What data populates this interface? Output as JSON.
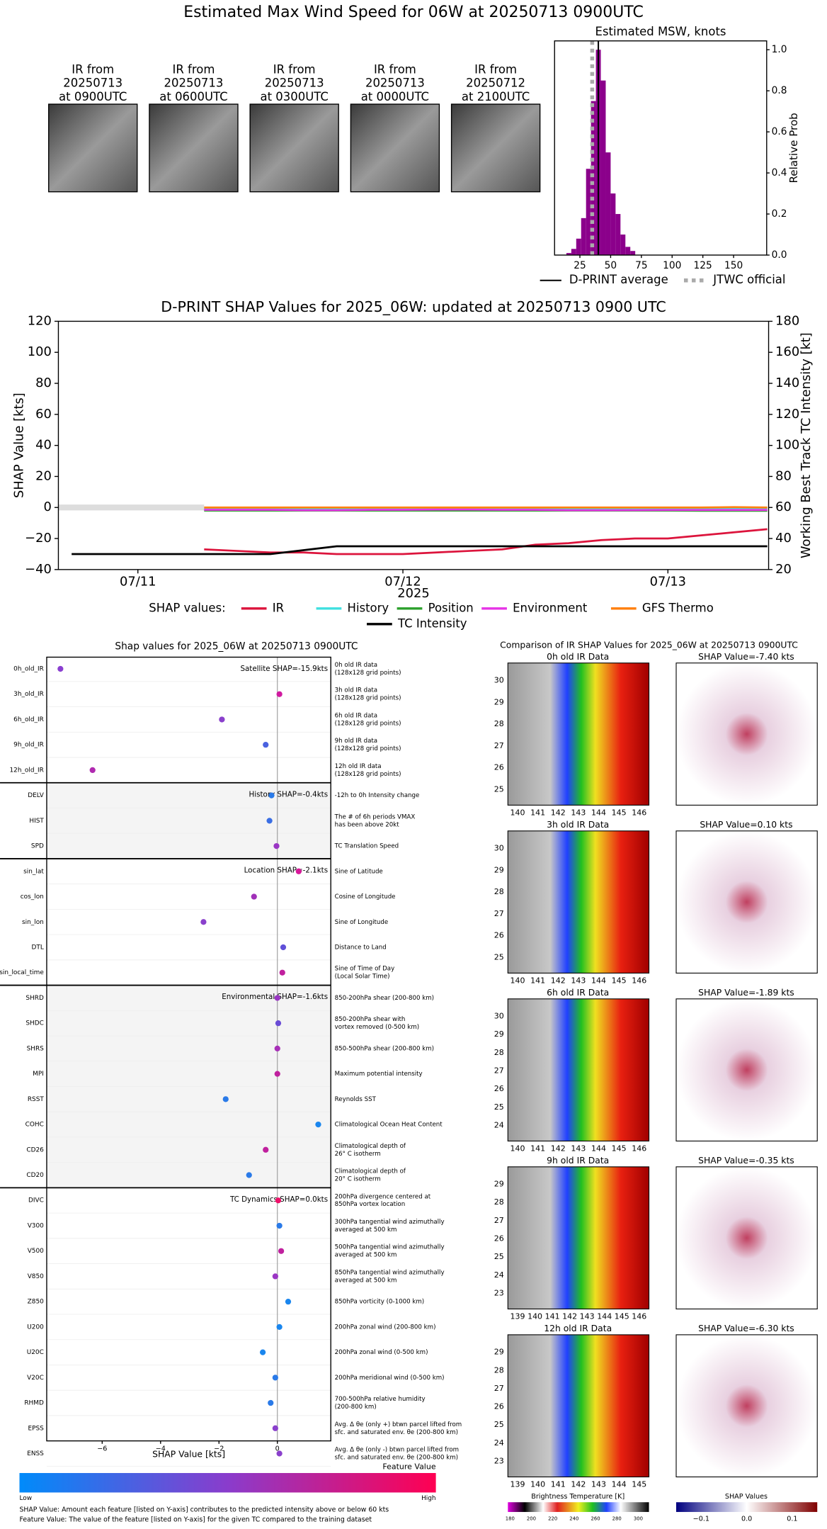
{
  "title": "Estimated Max Wind Speed for 06W at 20250713 0900UTC",
  "thumbnails": [
    {
      "label": [
        "IR from",
        "20250713",
        "at 0900UTC"
      ]
    },
    {
      "label": [
        "IR from",
        "20250713",
        "at 0600UTC"
      ]
    },
    {
      "label": [
        "IR from",
        "20250713",
        "at 0300UTC"
      ]
    },
    {
      "label": [
        "IR from",
        "20250713",
        "at 0000UTC"
      ]
    },
    {
      "label": [
        "IR from",
        "20250712",
        "at 2100UTC"
      ]
    }
  ],
  "chart_data": [
    {
      "type": "histogram",
      "title": "Estimated MSW, knots",
      "y_label": "Relative Prob",
      "color": "#8b008b",
      "bins": [
        14,
        18,
        22,
        26,
        30,
        34,
        38,
        42,
        46,
        50,
        54,
        58,
        62,
        66,
        70
      ],
      "values": [
        0.01,
        0.03,
        0.08,
        0.18,
        0.42,
        0.75,
        1.0,
        0.85,
        0.5,
        0.3,
        0.2,
        0.1,
        0.04,
        0.02
      ],
      "xlim": [
        4.4,
        176.9
      ],
      "xticks": [
        25,
        50,
        75,
        100,
        125,
        150
      ],
      "ylim": [
        0,
        1.043
      ],
      "yticks": [
        {
          "value": 0,
          "label": "0.0"
        },
        {
          "value": 0.2,
          "label": "0.2"
        },
        {
          "value": 0.4,
          "label": "0.4"
        },
        {
          "value": 0.6,
          "label": "0.6"
        },
        {
          "value": 0.8,
          "label": "0.8"
        },
        {
          "value": 1.0,
          "label": "1.0"
        }
      ],
      "reference_lines": [
        {
          "name": "D-PRINT average",
          "value": 40,
          "color": "#000000",
          "style": "solid"
        },
        {
          "name": "JTWC official",
          "value": 35,
          "color": "#aaaaaa",
          "style": "dotted"
        }
      ]
    },
    {
      "type": "line",
      "title": "D-PRINT SHAP Values for 2025_06W: updated at 20250713 0900 UTC",
      "y_label": "SHAP Value [kts]",
      "y2_label": "Working Best Track TC Intensity [kt]",
      "x_label": "2025",
      "legend_title": "SHAP values:",
      "x": [
        -0.25,
        -0.125,
        0,
        0.125,
        0.25,
        0.375,
        0.5,
        0.625,
        0.75,
        0.875,
        1,
        1.125,
        1.25,
        1.375,
        1.5,
        1.625,
        1.75,
        1.875,
        2,
        2.125,
        2.25,
        2.375
      ],
      "xlim": [
        -0.3,
        2.38
      ],
      "xticks": [
        {
          "value": 0,
          "label": "07/11"
        },
        {
          "value": 1,
          "label": "07/12"
        },
        {
          "value": 2,
          "label": "07/13"
        }
      ],
      "ylim": [
        -40,
        120
      ],
      "yticks": [
        {
          "value": -40,
          "label": "−40"
        },
        {
          "value": -20,
          "label": "−20"
        },
        0,
        20,
        40,
        60,
        80,
        100,
        120
      ],
      "y2lim": [
        20,
        180
      ],
      "y2ticks": [
        20,
        40,
        60,
        80,
        100,
        120,
        140,
        160,
        180
      ],
      "series": [
        {
          "name": "IR",
          "color": "#dc143c",
          "values": [
            null,
            null,
            null,
            null,
            -27,
            -28,
            -29,
            -29,
            -30,
            -30,
            -30,
            -29,
            -28,
            -27,
            -24,
            -23,
            -21,
            -20,
            -20,
            -18,
            -16,
            -14
          ]
        },
        {
          "name": "History",
          "color": "#40e0e0",
          "values": [
            null,
            null,
            null,
            null,
            -1,
            -1,
            -1,
            -1,
            -1,
            -1,
            -1,
            -1,
            -1,
            -1,
            -0.8,
            -0.8,
            -0.7,
            -0.6,
            -0.5,
            -0.5,
            -0.4,
            -0.4
          ]
        },
        {
          "name": "Position",
          "color": "#2ca02c",
          "values": [
            null,
            null,
            null,
            null,
            -2,
            -2,
            -2,
            -2,
            -2,
            -2,
            -2,
            -2,
            -2,
            -2,
            -2,
            -2,
            -2,
            -2,
            -2,
            -2.1,
            -2.1,
            -2.1
          ]
        },
        {
          "name": "Environment",
          "color": "#e633e6",
          "values": [
            null,
            null,
            null,
            null,
            -1.5,
            -1.5,
            -1.5,
            -1.8,
            -1.8,
            -1.5,
            -1.5,
            -1.3,
            -1.3,
            -1.5,
            -1.5,
            -1.8,
            -1.8,
            -1.7,
            -1.6,
            -1.6,
            -1.6,
            -1.6
          ]
        },
        {
          "name": "GFS Thermo",
          "color": "#ff7f0e",
          "values": [
            null,
            null,
            null,
            null,
            0,
            0,
            0,
            0,
            0,
            0,
            0,
            0,
            0,
            0,
            0,
            0,
            0,
            0,
            0,
            0,
            0.2,
            0
          ]
        },
        {
          "name": "TC Intensity",
          "color": "#000000",
          "axis": "y2",
          "values": [
            30,
            30,
            30,
            30,
            30,
            30,
            30,
            32.5,
            35,
            35,
            35,
            35,
            35,
            35,
            35,
            35,
            35,
            35,
            35,
            35,
            35,
            35
          ]
        }
      ]
    },
    {
      "type": "dot",
      "title": "Shap values for 2025_06W at 20250713 0900UTC",
      "x_label": "SHAP Value [kts]",
      "xlim": [
        -7.9,
        1.83
      ],
      "xticks": [
        {
          "value": -6,
          "label": "−6"
        },
        {
          "value": -4,
          "label": "−4"
        },
        {
          "value": -2,
          "label": "−2"
        },
        0
      ],
      "colorbar_label": "Feature Value",
      "colorbar_low": "Low",
      "colorbar_high": "High",
      "notes": [
        "SHAP Value: Amount each feature [listed on Y-axis] contributes to the predicted intensity above or below 60 kts",
        "Feature Value: The value of the feature [listed on Y-axis] for the given TC compared to the training dataset"
      ],
      "groups": [
        {
          "label": "Satellite SHAP=-15.9kts",
          "shaded": false,
          "features": [
            {
              "name": "0h_old_IR",
              "value": -7.43,
              "color": "#8a3fd0",
              "description": [
                "0h old IR data",
                "(128x128 grid points)"
              ]
            },
            {
              "name": "3h_old_IR",
              "value": 0.07,
              "color": "#d01aa0",
              "description": [
                "3h old IR data",
                "(128x128 grid points)"
              ]
            },
            {
              "name": "6h_old_IR",
              "value": -1.9,
              "color": "#8a40cc",
              "description": [
                "6h old IR data",
                "(128x128 grid points)"
              ]
            },
            {
              "name": "9h_old_IR",
              "value": -0.4,
              "color": "#4a62e0",
              "description": [
                "9h old IR data",
                "(128x128 grid points)"
              ]
            },
            {
              "name": "12h_old_IR",
              "value": -6.33,
              "color": "#b02ab0",
              "description": [
                "12h old IR data",
                "(128x128 grid points)"
              ]
            }
          ]
        },
        {
          "label": "History SHAP=-0.4kts",
          "shaded": true,
          "features": [
            {
              "name": "DELV",
              "value": -0.2,
              "color": "#2a7ae8",
              "description": [
                "-12h to 0h Intensity change"
              ]
            },
            {
              "name": "HIST",
              "value": -0.27,
              "color": "#3a6ee4",
              "description": [
                "The # of 6h periods VMAX",
                "has been above 20kt"
              ]
            },
            {
              "name": "SPD",
              "value": -0.03,
              "color": "#9a36c4",
              "description": [
                "TC Translation Speed"
              ]
            }
          ]
        },
        {
          "label": "Location SHAP=-2.1kts",
          "shaded": false,
          "features": [
            {
              "name": "sin_lat",
              "value": 0.73,
              "color": "#d8189a",
              "description": [
                "Sine of Latitude"
              ]
            },
            {
              "name": "cos_lon",
              "value": -0.8,
              "color": "#a030b8",
              "description": [
                "Cosine of Longitude"
              ]
            },
            {
              "name": "sin_lon",
              "value": -2.53,
              "color": "#8a40cc",
              "description": [
                "Sine of Longitude"
              ]
            },
            {
              "name": "DTL",
              "value": 0.2,
              "color": "#6050d8",
              "description": [
                "Distance to Land"
              ]
            },
            {
              "name": "sin_local_time",
              "value": 0.17,
              "color": "#c0209e",
              "description": [
                "Sine of Time of Day",
                "(Local Solar Time)"
              ]
            }
          ]
        },
        {
          "label": "Environmental SHAP=-1.6kts",
          "shaded": true,
          "features": [
            {
              "name": "SHRD",
              "value": 0.0,
              "color": "#9a36c4",
              "description": [
                "850-200hPa shear (200-800 km)"
              ]
            },
            {
              "name": "SHDC",
              "value": 0.03,
              "color": "#6a4cd6",
              "description": [
                "850-200hPa shear with",
                "vortex removed (0-500 km)"
              ]
            },
            {
              "name": "SHRS",
              "value": 0.0,
              "color": "#a830b8",
              "description": [
                "850-500hPa shear (200-800 km)"
              ]
            },
            {
              "name": "MPI",
              "value": 0.0,
              "color": "#c0209e",
              "description": [
                "Maximum potential intensity"
              ]
            },
            {
              "name": "RSST",
              "value": -1.77,
              "color": "#2a7ae8",
              "description": [
                "Reynolds SST"
              ]
            },
            {
              "name": "COHC",
              "value": 1.4,
              "color": "#1a86ee",
              "description": [
                "Climatological Ocean Heat Content"
              ]
            },
            {
              "name": "CD26",
              "value": -0.4,
              "color": "#c0209e",
              "description": [
                "Climatological depth of",
                "26° C isotherm"
              ]
            },
            {
              "name": "CD20",
              "value": -0.97,
              "color": "#2a7ae8",
              "description": [
                "Climatological depth of",
                "20° C isotherm"
              ]
            }
          ]
        },
        {
          "label": "TC Dynamics SHAP=0.0kts",
          "shaded": false,
          "features": [
            {
              "name": "DIVC",
              "value": 0.03,
              "color": "#f0106a",
              "description": [
                "200hPa divergence centered at",
                "850hPa vortex location"
              ]
            },
            {
              "name": "V300",
              "value": 0.07,
              "color": "#2a7ae8",
              "description": [
                "300hPa tangential wind azimuthally",
                "averaged at 500 km"
              ]
            },
            {
              "name": "V500",
              "value": 0.13,
              "color": "#c0209e",
              "description": [
                "500hPa tangential wind azimuthally",
                "averaged at 500 km"
              ]
            },
            {
              "name": "V850",
              "value": -0.07,
              "color": "#9a36c4",
              "description": [
                "850hPa tangential wind azimuthally",
                "averaged at 500 km"
              ]
            },
            {
              "name": "Z850",
              "value": 0.37,
              "color": "#1a86ee",
              "description": [
                "850hPa vorticity (0-1000 km)"
              ]
            },
            {
              "name": "U200",
              "value": 0.07,
              "color": "#1a86ee",
              "description": [
                "200hPa zonal wind (200-800 km)"
              ]
            },
            {
              "name": "U20C",
              "value": -0.5,
              "color": "#1a86ee",
              "description": [
                "200hPa zonal wind (0-500 km)"
              ]
            },
            {
              "name": "V20C",
              "value": -0.07,
              "color": "#2a7ae8",
              "description": [
                "200hPa meridional wind (0-500 km)"
              ]
            },
            {
              "name": "RHMD",
              "value": -0.23,
              "color": "#2a7ae8",
              "description": [
                "700-500hPa relative humidity",
                "(200-800 km)"
              ]
            },
            {
              "name": "EPSS",
              "value": -0.07,
              "color": "#8a40cc",
              "description": [
                "Avg. Δ θe (only +) btwn parcel lifted from",
                "sfc. and saturated env. θe (200-800 km)"
              ]
            },
            {
              "name": "ENSS",
              "value": 0.07,
              "color": "#8a40cc",
              "description": [
                "Avg. Δ θe (only -) btwn parcel lifted from",
                "sfc. and saturated env. θe (200-800 km)"
              ]
            }
          ]
        }
      ]
    }
  ],
  "ir_comparison": {
    "title": "Comparison of IR SHAP Values for 2025_06W at 20250713 0900UTC",
    "panels": [
      {
        "ir_title": "0h old IR Data",
        "shap_title": "SHAP Value=-7.40 kts",
        "xticks": [
          140,
          141,
          142,
          143,
          144,
          145,
          146
        ],
        "yticks": [
          25,
          26,
          27,
          28,
          29,
          30
        ]
      },
      {
        "ir_title": "3h old IR Data",
        "shap_title": "SHAP Value=0.10 kts",
        "xticks": [
          140,
          141,
          142,
          143,
          144,
          145,
          146
        ],
        "yticks": [
          25,
          26,
          27,
          28,
          29,
          30
        ]
      },
      {
        "ir_title": "6h old IR Data",
        "shap_title": "SHAP Value=-1.89 kts",
        "xticks": [
          140,
          141,
          142,
          143,
          144,
          145,
          146
        ],
        "yticks": [
          24,
          25,
          26,
          27,
          28,
          29,
          30
        ]
      },
      {
        "ir_title": "9h old IR Data",
        "shap_title": "SHAP Value=-0.35 kts",
        "xticks": [
          139,
          140,
          141,
          142,
          143,
          144,
          145,
          146
        ],
        "yticks": [
          23,
          24,
          25,
          26,
          27,
          28,
          29
        ]
      },
      {
        "ir_title": "12h old IR Data",
        "shap_title": "SHAP Value=-6.30 kts",
        "xticks": [
          139,
          140,
          141,
          142,
          143,
          144,
          145
        ],
        "yticks": [
          23,
          24,
          25,
          26,
          27,
          28,
          29
        ]
      }
    ],
    "bt_colorbar": {
      "label": "Brightness Temperature [K]",
      "ticks": [
        180,
        200,
        220,
        240,
        260,
        280,
        300
      ]
    },
    "shap_colorbar": {
      "label": "SHAP Values",
      "ticks": [
        {
          "value": -0.1,
          "label": "−0.1"
        },
        {
          "value": 0,
          "label": "0.0"
        },
        {
          "value": 0.1,
          "label": "0.1"
        }
      ]
    }
  }
}
